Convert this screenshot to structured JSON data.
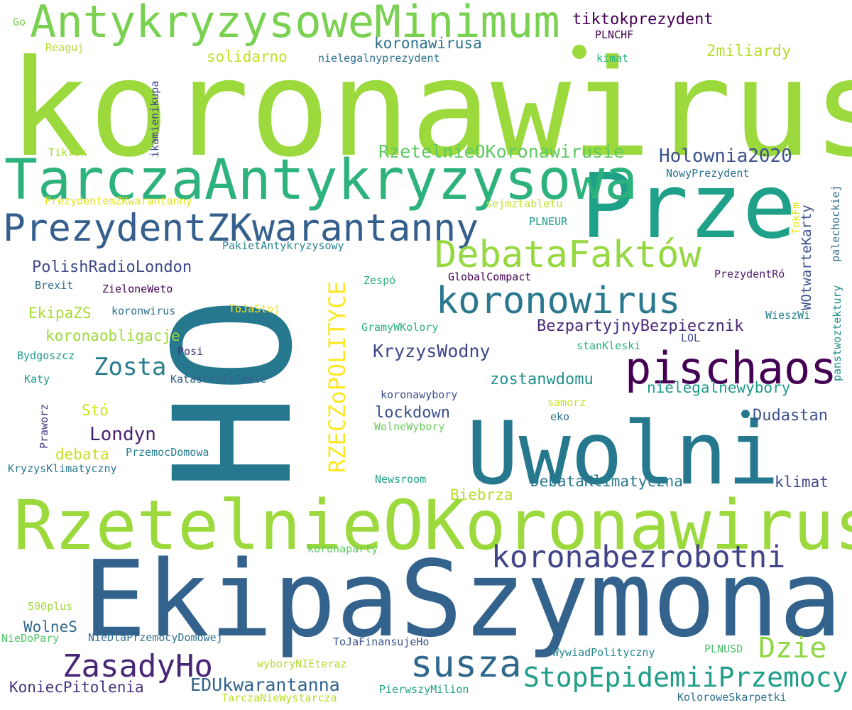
{
  "words": [
    {
      "text": "koronawirus",
      "color": "#9bd93c"
    },
    {
      "text": "HO",
      "color": "#26788e"
    },
    {
      "text": "EkipaSzymona",
      "color": "#33638d"
    },
    {
      "text": "RzetelnieOKoronawirus",
      "color": "#9bd93c"
    },
    {
      "text": "Prze",
      "color": "#1fa088"
    },
    {
      "text": "Uwolni",
      "color": "#26788e"
    },
    {
      "text": "TarczaAntykryzysowa",
      "color": "#2db27d"
    },
    {
      "text": "AntykryzysoweMinimum",
      "color": "#7ad151"
    },
    {
      "text": "PrezydentZKwarantanny",
      "color": "#355f8d"
    },
    {
      "text": "pischaos",
      "color": "#440154"
    },
    {
      "text": "DebataFaktów",
      "color": "#95d840"
    },
    {
      "text": "koronowirus",
      "color": "#2a788e"
    },
    {
      "text": "koronabezrobotni",
      "color": "#414487"
    },
    {
      "text": "susza",
      "color": "#31688e"
    },
    {
      "text": "ZasadyHo",
      "color": "#482677"
    },
    {
      "text": "StopEpidemiiPrzemocy",
      "color": "#1f9e89"
    },
    {
      "text": "Dzie",
      "color": "#8fd744"
    },
    {
      "text": "RZECZoPOLITYCE",
      "color": "#fde725"
    },
    {
      "text": "Zosta",
      "color": "#287c8e"
    },
    {
      "text": "Holownia2020",
      "color": "#3b528b"
    },
    {
      "text": "RzetelnieOKoronawirusie",
      "color": "#5ec962"
    },
    {
      "text": "tiktokprezydent",
      "color": "#440154"
    },
    {
      "text": "koronawirusa",
      "color": "#2c728e"
    },
    {
      "text": "solidarno",
      "color": "#c2df23"
    },
    {
      "text": "2miliardy",
      "color": "#b5de2b"
    },
    {
      "text": "PolishRadioLondon",
      "color": "#3e4989"
    },
    {
      "text": "KryzysWodny",
      "color": "#3f4788"
    },
    {
      "text": "BezpartyjnyBezpiecznik",
      "color": "#482878"
    },
    {
      "text": "Londyn",
      "color": "#481f70"
    },
    {
      "text": "EDUkwarantanna",
      "color": "#33638d"
    },
    {
      "text": "KoniecPitolenia",
      "color": "#46327e"
    },
    {
      "text": "koronaobligacje",
      "color": "#9dd93b"
    },
    {
      "text": "EkipaZS",
      "color": "#a5db36"
    },
    {
      "text": "WolneS",
      "color": "#31688e"
    },
    {
      "text": "zostanwdomu",
      "color": "#21918c"
    },
    {
      "text": "nielegalnewybory",
      "color": "#1f9a8a"
    },
    {
      "text": "lockdown",
      "color": "#3b528b"
    },
    {
      "text": "Dudastan",
      "color": "#3b528b"
    },
    {
      "text": "klimat",
      "color": "#3e4a89"
    },
    {
      "text": "DebataKlimatyczna",
      "color": "#2a778e"
    },
    {
      "text": "debata",
      "color": "#c8e020"
    },
    {
      "text": "Stó",
      "color": "#d0e11c"
    },
    {
      "text": "Biebrza",
      "color": "#b5de2b"
    },
    {
      "text": "WOtwarteKarty",
      "color": "#3b528b"
    },
    {
      "text": "Go",
      "color": "#7ad151"
    },
    {
      "text": "Reaguj",
      "color": "#b2dd2d"
    },
    {
      "text": "PLNCHF",
      "color": "#440154"
    },
    {
      "text": "nielegalnyprezydent",
      "color": "#2c728e"
    },
    {
      "text": "kimat",
      "color": "#2db27d"
    },
    {
      "text": "ikamienikupa",
      "color": "#3e4a89"
    },
    {
      "text": "TikTok",
      "color": "#a8db34"
    },
    {
      "text": "palechockiej",
      "color": "#2e6e8e"
    },
    {
      "text": "NowyPrezydent",
      "color": "#2c728e"
    },
    {
      "text": "PrezydentemZKwarantanny",
      "color": "#e2e418"
    },
    {
      "text": "sejmztabletu",
      "color": "#c0df25"
    },
    {
      "text": "TokFm",
      "color": "#e5e419"
    },
    {
      "text": "PLNEUR",
      "color": "#1f9a8a"
    },
    {
      "text": "PakietAntykryzysowy",
      "color": "#25848e"
    },
    {
      "text": "Brexit",
      "color": "#2e6f8e"
    },
    {
      "text": "ZieloneWeto",
      "color": "#440154"
    },
    {
      "text": "Zespó",
      "color": "#2db27d"
    },
    {
      "text": "GlobalCompact",
      "color": "#440154"
    },
    {
      "text": "PrezydentRó",
      "color": "#481b6d"
    },
    {
      "text": "ToJaStoj",
      "color": "#f1e51d"
    },
    {
      "text": "koronwirus",
      "color": "#2d708e"
    },
    {
      "text": "WieszWi",
      "color": "#26828e"
    },
    {
      "text": "GramyWKolory",
      "color": "#2db27d"
    },
    {
      "text": "stanKleski",
      "color": "#29af7f"
    },
    {
      "text": "LOL",
      "color": "#3e4a89"
    },
    {
      "text": "panstwoztektury",
      "color": "#21918c"
    },
    {
      "text": "Bydgoszcz",
      "color": "#1f9e89"
    },
    {
      "text": "Posi",
      "color": "#472f7d"
    },
    {
      "text": "Katy",
      "color": "#1f988b"
    },
    {
      "text": "KatastrofaSmole",
      "color": "#33638d"
    },
    {
      "text": "Praworz",
      "color": "#453781"
    },
    {
      "text": "koronawybory",
      "color": "#3b528b"
    },
    {
      "text": "samorz",
      "color": "#c8e020"
    },
    {
      "text": "eko",
      "color": "#2c728e"
    },
    {
      "text": "WolneWybory",
      "color": "#6ccd5a"
    },
    {
      "text": "PrzemocDomowa",
      "color": "#27808e"
    },
    {
      "text": "KryzysKlimatyczny",
      "color": "#2a788e"
    },
    {
      "text": "Newsroom",
      "color": "#20a386"
    },
    {
      "text": "koronaparty",
      "color": "#5ec962"
    },
    {
      "text": "500plus",
      "color": "#a2da37"
    },
    {
      "text": "NieDoPary",
      "color": "#54c568"
    },
    {
      "text": "NieDlaPrzemocyDomowej",
      "color": "#2e6e8e"
    },
    {
      "text": "ToJaFinansujeHo",
      "color": "#3b528b"
    },
    {
      "text": "WywiadPolityczny",
      "color": "#24878e"
    },
    {
      "text": "PLNUSD",
      "color": "#4ac16d"
    },
    {
      "text": "wyboryNIEteraz",
      "color": "#b2dd2d"
    },
    {
      "text": "PierwszyMilion",
      "color": "#20a386"
    },
    {
      "text": "TarczaNieWystarcza",
      "color": "#bddf26"
    },
    {
      "text": "KoloroweSkarpetki",
      "color": "#2d708e"
    }
  ]
}
